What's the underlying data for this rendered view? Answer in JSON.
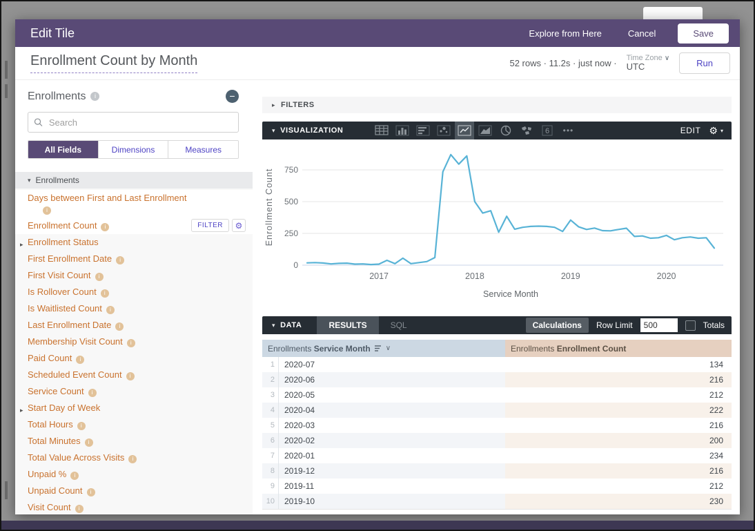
{
  "modal_header": {
    "title": "Edit Tile",
    "explore_label": "Explore from Here",
    "cancel_label": "Cancel",
    "save_label": "Save",
    "background_color": "#594a76"
  },
  "title_bar": {
    "title": "Enrollment Count by Month",
    "stats": "52 rows  ·  11.2s  ·  just now  ·",
    "timezone_label": "Time Zone",
    "timezone_value": "UTC",
    "run_label": "Run"
  },
  "sidebar": {
    "view_name": "Enrollments",
    "search_placeholder": "Search",
    "tabs": [
      {
        "label": "All Fields",
        "active": true
      },
      {
        "label": "Dimensions",
        "active": false
      },
      {
        "label": "Measures",
        "active": false
      }
    ],
    "section_label": "Enrollments",
    "filter_button_label": "FILTER",
    "field_color": "#c9722e",
    "fields": [
      {
        "label": "Days between First and Last Enrollment",
        "info": true,
        "wrap": true,
        "highlight": true
      },
      {
        "label": "Enrollment Count",
        "info": true,
        "highlight": true,
        "filter": true,
        "gear": true
      },
      {
        "label": "Enrollment Status",
        "arrow": true
      },
      {
        "label": "First Enrollment Date",
        "info": true
      },
      {
        "label": "First Visit Count",
        "info": true
      },
      {
        "label": "Is Rollover Count",
        "info": true
      },
      {
        "label": "Is Waitlisted Count",
        "info": true
      },
      {
        "label": "Last Enrollment Date",
        "info": true
      },
      {
        "label": "Membership Visit Count",
        "info": true
      },
      {
        "label": "Paid Count",
        "info": true
      },
      {
        "label": "Scheduled Event Count",
        "info": true
      },
      {
        "label": "Service Count",
        "info": true
      },
      {
        "label": "Start Day of Week",
        "arrow": true
      },
      {
        "label": "Total Hours",
        "info": true
      },
      {
        "label": "Total Minutes",
        "info": true
      },
      {
        "label": "Total Value Across Visits",
        "info": true
      },
      {
        "label": "Unpaid %",
        "info": true
      },
      {
        "label": "Unpaid Count",
        "info": true
      },
      {
        "label": "Visit Count",
        "info": true
      }
    ]
  },
  "filters_bar": {
    "label": "FILTERS"
  },
  "visualization": {
    "label": "VISUALIZATION",
    "edit_label": "EDIT",
    "types": [
      {
        "name": "table"
      },
      {
        "name": "column-chart"
      },
      {
        "name": "bar-chart"
      },
      {
        "name": "scatterplot"
      },
      {
        "name": "line-chart",
        "selected": true
      },
      {
        "name": "area-chart"
      },
      {
        "name": "donut-chart"
      },
      {
        "name": "map"
      },
      {
        "name": "single-value",
        "glyph": "6"
      },
      {
        "name": "more",
        "glyph": "•••"
      }
    ]
  },
  "chart_data": {
    "type": "line",
    "title": "",
    "xlabel": "Service Month",
    "ylabel": "Enrollment Count",
    "legend": "none",
    "grid": true,
    "line_color": "#58b3d6",
    "ylim": [
      0,
      900
    ],
    "yticks": [
      0,
      250,
      500,
      750
    ],
    "xtick_labels": [
      "2017",
      "2018",
      "2019",
      "2020"
    ],
    "xtick_positions": [
      9,
      21,
      33,
      45
    ],
    "x": [
      "2016-04",
      "2016-05",
      "2016-06",
      "2016-07",
      "2016-08",
      "2016-09",
      "2016-10",
      "2016-11",
      "2016-12",
      "2017-01",
      "2017-02",
      "2017-03",
      "2017-04",
      "2017-05",
      "2017-06",
      "2017-07",
      "2017-08",
      "2017-09",
      "2017-10",
      "2017-11",
      "2017-12",
      "2018-01",
      "2018-02",
      "2018-03",
      "2018-04",
      "2018-05",
      "2018-06",
      "2018-07",
      "2018-08",
      "2018-09",
      "2018-10",
      "2018-11",
      "2018-12",
      "2019-01",
      "2019-02",
      "2019-03",
      "2019-04",
      "2019-05",
      "2019-06",
      "2019-07",
      "2019-08",
      "2019-09",
      "2019-10",
      "2019-11",
      "2019-12",
      "2020-01",
      "2020-02",
      "2020-03",
      "2020-04",
      "2020-05",
      "2020-06",
      "2020-07"
    ],
    "values": [
      18,
      20,
      17,
      10,
      14,
      16,
      8,
      10,
      5,
      8,
      38,
      12,
      55,
      12,
      20,
      28,
      60,
      735,
      870,
      795,
      860,
      500,
      410,
      428,
      260,
      385,
      283,
      298,
      305,
      307,
      305,
      298,
      265,
      355,
      302,
      281,
      292,
      272,
      270,
      281,
      291,
      226,
      230,
      212,
      216,
      234,
      200,
      216,
      222,
      212,
      216,
      134
    ]
  },
  "data_panel": {
    "label": "DATA",
    "tabs": [
      "RESULTS",
      "SQL"
    ],
    "calculations_label": "Calculations",
    "row_limit_label": "Row Limit",
    "row_limit_value": "500",
    "totals_label": "Totals"
  },
  "table": {
    "header": [
      {
        "view": "Enrollments",
        "field": "Service Month",
        "sorted": true
      },
      {
        "view": "Enrollments",
        "field": "Enrollment Count",
        "sorted": false
      }
    ],
    "rows": [
      {
        "n": "1",
        "month": "2020-07",
        "count": "134"
      },
      {
        "n": "2",
        "month": "2020-06",
        "count": "216"
      },
      {
        "n": "3",
        "month": "2020-05",
        "count": "212"
      },
      {
        "n": "4",
        "month": "2020-04",
        "count": "222"
      },
      {
        "n": "5",
        "month": "2020-03",
        "count": "216"
      },
      {
        "n": "6",
        "month": "2020-02",
        "count": "200"
      },
      {
        "n": "7",
        "month": "2020-01",
        "count": "234"
      },
      {
        "n": "8",
        "month": "2019-12",
        "count": "216"
      },
      {
        "n": "9",
        "month": "2019-11",
        "count": "212"
      },
      {
        "n": "10",
        "month": "2019-10",
        "count": "230"
      }
    ]
  },
  "icons": {
    "search": "magnifier",
    "info": "i-in-circle",
    "collapse_view": "minus-in-circle",
    "settings": "gear",
    "sort": "sort-descending-lines",
    "expand": "chevron-right",
    "collapse": "chevron-down",
    "more": "ellipsis"
  }
}
